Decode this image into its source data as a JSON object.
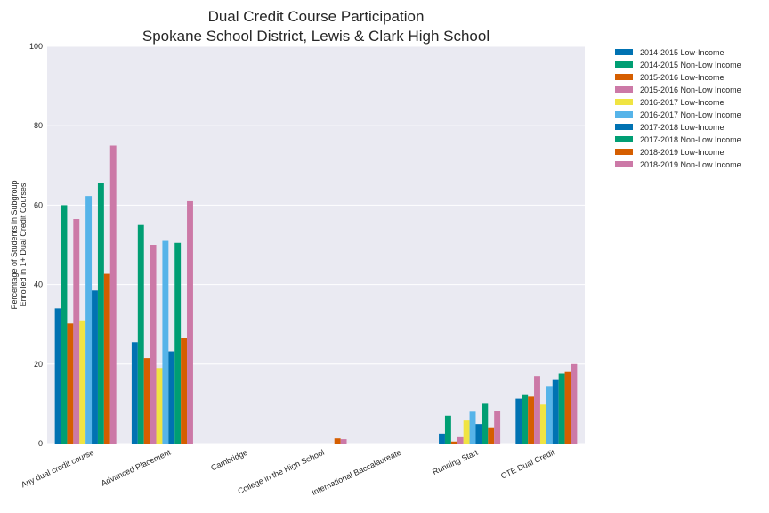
{
  "chart_data": {
    "type": "bar",
    "title": [
      "Dual Credit Course Participation",
      "Spokane School District, Lewis & Clark High School"
    ],
    "ylabel": [
      "Percentage of Students in Subgroup",
      "Enrolled in 1+ Dual Credit Courses"
    ],
    "xlabel": "",
    "ylim": [
      0,
      100
    ],
    "yticks": [
      0,
      20,
      40,
      60,
      80,
      100
    ],
    "grid": true,
    "legend_position": "outside-top-right",
    "categories": [
      "Any dual credit course",
      "Advanced Placement",
      "Cambridge",
      "College in the High School",
      "International Baccalaureate",
      "Running Start",
      "CTE Dual Credit"
    ],
    "series": [
      {
        "name": "2014-2015 Low-Income",
        "color": "#0072b2",
        "values": [
          34.0,
          25.5,
          0,
          0,
          0,
          2.5,
          11.3
        ]
      },
      {
        "name": "2014-2015 Non-Low Income",
        "color": "#009e73",
        "values": [
          60.0,
          55.0,
          0,
          0,
          0,
          7.0,
          12.4
        ]
      },
      {
        "name": "2015-2016 Low-Income",
        "color": "#d55e00",
        "values": [
          30.2,
          21.5,
          0,
          0,
          0,
          0.5,
          11.8
        ]
      },
      {
        "name": "2015-2016 Non-Low Income",
        "color": "#cc79a7",
        "values": [
          56.5,
          50.0,
          0,
          0,
          0,
          1.6,
          17.0
        ]
      },
      {
        "name": "2016-2017 Low-Income",
        "color": "#f0e442",
        "values": [
          31.0,
          19.0,
          0,
          0,
          0,
          5.8,
          9.8
        ]
      },
      {
        "name": "2016-2017 Non-Low Income",
        "color": "#56b4e9",
        "values": [
          62.3,
          51.0,
          0,
          0,
          0,
          8.0,
          14.5
        ]
      },
      {
        "name": "2017-2018 Low-Income",
        "color": "#0072b2",
        "values": [
          38.5,
          23.2,
          0,
          0,
          0,
          4.9,
          16.0
        ]
      },
      {
        "name": "2017-2018 Non-Low Income",
        "color": "#009e73",
        "values": [
          65.5,
          50.5,
          0,
          0,
          0,
          10.0,
          17.6
        ]
      },
      {
        "name": "2018-2019 Low-Income",
        "color": "#d55e00",
        "values": [
          42.7,
          26.5,
          0,
          1.3,
          0,
          4.1,
          18.0
        ]
      },
      {
        "name": "2018-2019 Non-Low Income",
        "color": "#cc79a7",
        "values": [
          75.0,
          61.0,
          0,
          1.1,
          0,
          8.2,
          20.0
        ]
      }
    ],
    "colors": {
      "plot_background": "#eaeaf2",
      "grid": "#ffffff",
      "text": "#262626"
    }
  }
}
